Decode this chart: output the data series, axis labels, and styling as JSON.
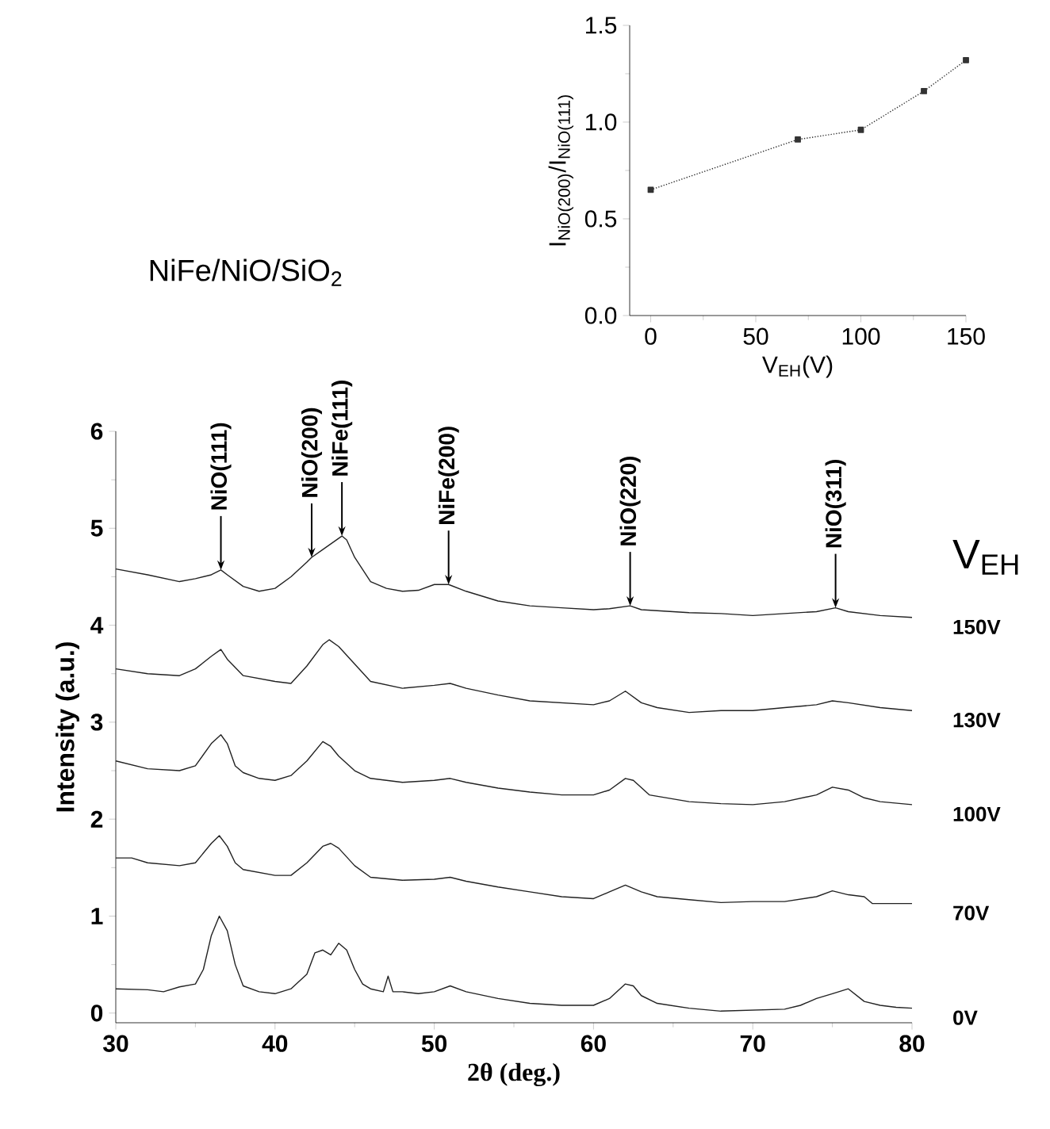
{
  "chart_data": [
    {
      "type": "line",
      "title": "NiFe/NiO/SiO$_{2}$",
      "xlabel": "2θ (deg.)",
      "ylabel": "Intensity (a.u.)",
      "legend_title": "V$_{EH}$",
      "xlim": [
        30,
        80
      ],
      "ylim": [
        -0.1,
        6
      ],
      "xticks": [
        30,
        40,
        50,
        60,
        70,
        80
      ],
      "yticks": [
        0,
        1,
        2,
        3,
        4,
        5,
        6
      ],
      "annotations": [
        {
          "text": "NiO(111)",
          "x": 36.6,
          "y": 4.57
        },
        {
          "text": "NiO(200)",
          "x": 42.3,
          "y": 4.7
        },
        {
          "text": "NiFe(111)",
          "x": 44.2,
          "y": 4.92
        },
        {
          "text": "NiFe(200)",
          "x": 50.9,
          "y": 4.42
        },
        {
          "text": "NiO(220)",
          "x": 62.3,
          "y": 4.2
        },
        {
          "text": "NiO(311)",
          "x": 75.2,
          "y": 4.18
        }
      ],
      "series": [
        {
          "name": "0V",
          "color": "#222222",
          "x": [
            30,
            32,
            33,
            34,
            35,
            35.5,
            36,
            36.5,
            37,
            37.5,
            38,
            39,
            40,
            41,
            42,
            42.5,
            43,
            43.5,
            44,
            44.5,
            45,
            45.5,
            46,
            46.8,
            47.1,
            47.4,
            48,
            49,
            50,
            51,
            52,
            54,
            56,
            58,
            60,
            61,
            62,
            62.5,
            63,
            64,
            66,
            68,
            70,
            72,
            73,
            74,
            75,
            76,
            77,
            78,
            79,
            80
          ],
          "values": [
            0.25,
            0.24,
            0.22,
            0.27,
            0.3,
            0.45,
            0.8,
            1.0,
            0.85,
            0.5,
            0.28,
            0.22,
            0.2,
            0.25,
            0.4,
            0.62,
            0.65,
            0.6,
            0.72,
            0.65,
            0.45,
            0.3,
            0.25,
            0.22,
            0.38,
            0.22,
            0.22,
            0.2,
            0.22,
            0.28,
            0.22,
            0.15,
            0.1,
            0.08,
            0.08,
            0.15,
            0.3,
            0.28,
            0.18,
            0.1,
            0.05,
            0.02,
            0.03,
            0.04,
            0.08,
            0.15,
            0.2,
            0.25,
            0.12,
            0.08,
            0.06,
            0.05
          ]
        },
        {
          "name": "70V",
          "color": "#222222",
          "x": [
            30,
            31,
            32,
            34,
            35,
            36,
            36.5,
            37,
            37.5,
            38,
            40,
            41,
            42,
            43,
            43.5,
            44,
            45,
            46,
            48,
            50,
            51,
            52,
            54,
            56,
            58,
            60,
            61,
            62,
            63,
            64,
            66,
            68,
            70,
            72,
            74,
            75,
            76,
            77,
            77.5,
            80
          ],
          "values": [
            1.6,
            1.6,
            1.55,
            1.52,
            1.55,
            1.75,
            1.83,
            1.72,
            1.55,
            1.48,
            1.42,
            1.42,
            1.55,
            1.72,
            1.75,
            1.7,
            1.52,
            1.4,
            1.37,
            1.38,
            1.4,
            1.36,
            1.3,
            1.25,
            1.2,
            1.18,
            1.25,
            1.32,
            1.25,
            1.2,
            1.17,
            1.14,
            1.15,
            1.15,
            1.2,
            1.26,
            1.22,
            1.2,
            1.13,
            1.13
          ]
        },
        {
          "name": "100V",
          "color": "#222222",
          "x": [
            30,
            32,
            34,
            35,
            36,
            36.6,
            37,
            37.5,
            38,
            39,
            40,
            41,
            42,
            43,
            43.5,
            44,
            45,
            46,
            48,
            50,
            51,
            52,
            54,
            56,
            58,
            60,
            61,
            62,
            62.5,
            63.5,
            66,
            68,
            70,
            72,
            74,
            75,
            76,
            77,
            78,
            80
          ],
          "values": [
            2.6,
            2.52,
            2.5,
            2.55,
            2.78,
            2.87,
            2.78,
            2.55,
            2.48,
            2.42,
            2.4,
            2.45,
            2.6,
            2.8,
            2.75,
            2.65,
            2.5,
            2.42,
            2.38,
            2.4,
            2.42,
            2.38,
            2.32,
            2.28,
            2.25,
            2.25,
            2.3,
            2.42,
            2.4,
            2.25,
            2.18,
            2.16,
            2.15,
            2.18,
            2.25,
            2.33,
            2.3,
            2.22,
            2.18,
            2.15
          ]
        },
        {
          "name": "130V",
          "color": "#222222",
          "x": [
            30,
            32,
            34,
            35,
            36,
            36.6,
            37,
            38,
            40,
            41,
            42,
            43,
            43.4,
            44,
            45,
            46,
            48,
            50,
            51,
            52,
            54,
            56,
            58,
            60,
            61,
            62,
            63,
            64,
            66,
            68,
            70,
            72,
            74,
            75,
            76,
            78,
            80
          ],
          "values": [
            3.55,
            3.5,
            3.48,
            3.55,
            3.68,
            3.75,
            3.65,
            3.48,
            3.42,
            3.4,
            3.58,
            3.8,
            3.85,
            3.78,
            3.6,
            3.42,
            3.35,
            3.38,
            3.4,
            3.35,
            3.28,
            3.22,
            3.2,
            3.18,
            3.22,
            3.32,
            3.2,
            3.15,
            3.1,
            3.12,
            3.12,
            3.15,
            3.18,
            3.22,
            3.2,
            3.15,
            3.12
          ]
        },
        {
          "name": "150V",
          "color": "#222222",
          "x": [
            30,
            32,
            34,
            35,
            36,
            36.6,
            37,
            38,
            39,
            40,
            41,
            42,
            42.3,
            43,
            44.2,
            44.5,
            45,
            46,
            47,
            48,
            49,
            50,
            50.9,
            52,
            54,
            56,
            58,
            60,
            61,
            62.3,
            63,
            66,
            68,
            70,
            72,
            74,
            75.2,
            76,
            78,
            80
          ],
          "values": [
            4.58,
            4.52,
            4.45,
            4.48,
            4.52,
            4.57,
            4.52,
            4.4,
            4.35,
            4.38,
            4.5,
            4.65,
            4.7,
            4.78,
            4.92,
            4.88,
            4.7,
            4.45,
            4.38,
            4.35,
            4.36,
            4.42,
            4.42,
            4.35,
            4.25,
            4.2,
            4.18,
            4.16,
            4.17,
            4.2,
            4.16,
            4.13,
            4.12,
            4.1,
            4.12,
            4.14,
            4.18,
            4.14,
            4.1,
            4.08
          ]
        }
      ]
    },
    {
      "type": "line",
      "xlabel": "V$_{EH}$(V)",
      "ylabel": "I$_{NiO(200)}$/I$_{NiO(111)}$",
      "xlim": [
        -10,
        150
      ],
      "ylim": [
        0,
        1.5
      ],
      "xticks": [
        0,
        50,
        100,
        150
      ],
      "yticks": [
        {
          "value": 0,
          "label": "0.0"
        },
        {
          "value": 0.5,
          "label": "0.5"
        },
        {
          "value": 1,
          "label": "1.0"
        },
        {
          "value": 1.5,
          "label": "1.5"
        }
      ],
      "marker": "square",
      "line_style": "dotted",
      "series": [
        {
          "color": "#333333",
          "x": [
            0,
            70,
            100,
            130,
            150
          ],
          "values": [
            0.65,
            0.91,
            0.96,
            1.16,
            1.32
          ]
        }
      ]
    }
  ]
}
